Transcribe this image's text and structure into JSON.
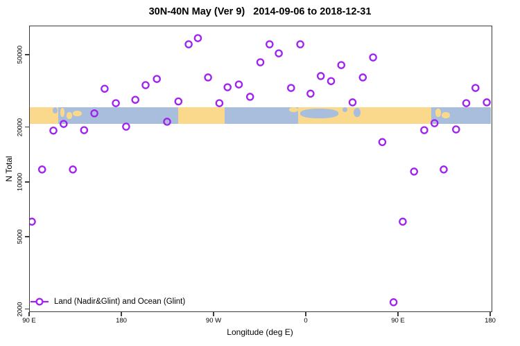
{
  "chart_data": {
    "type": "scatter",
    "title": "30N-40N May (Ver 9)   2014-09-06 to 2018-12-31",
    "xlabel": "Longitude (deg E)",
    "ylabel": "N Total",
    "x_axis": {
      "range_deg_east": [
        90,
        540
      ],
      "ticks": [
        {
          "lon": 90,
          "label": "90 E"
        },
        {
          "lon": 180,
          "label": "180"
        },
        {
          "lon": 270,
          "label": "90 W"
        },
        {
          "lon": 360,
          "label": "0"
        },
        {
          "lon": 450,
          "label": "90 E"
        },
        {
          "lon": 540,
          "label": "180"
        }
      ]
    },
    "y_axis": {
      "scale": "log10",
      "range": [
        1925,
        72200
      ],
      "ticks": [
        {
          "v": 2000,
          "label": "2000"
        },
        {
          "v": 5000,
          "label": "5000"
        },
        {
          "v": 10000,
          "label": "10000"
        },
        {
          "v": 20000,
          "label": "20000"
        },
        {
          "v": 50000,
          "label": "50000"
        }
      ]
    },
    "legend": {
      "label": "Land (Nadir&Glint) and Ocean (Glint)",
      "marker": "open-circle-on-line"
    },
    "series": [
      {
        "name": "Land (Nadir&Glint) and Ocean (Glint)",
        "color": "#A020F0",
        "marker": "open-circle",
        "points_lon_n": [
          [
            92,
            6100
          ],
          [
            102,
            11800
          ],
          [
            113,
            19300
          ],
          [
            123,
            21000
          ],
          [
            132,
            11800
          ],
          [
            143,
            19400
          ],
          [
            153,
            24000
          ],
          [
            163,
            32800
          ],
          [
            174,
            27300
          ],
          [
            184,
            20300
          ],
          [
            193,
            28500
          ],
          [
            203,
            34300
          ],
          [
            214,
            37100
          ],
          [
            224,
            21600
          ],
          [
            235,
            27900
          ],
          [
            245,
            57500
          ],
          [
            254,
            62200
          ],
          [
            264,
            37800
          ],
          [
            275,
            27300
          ],
          [
            283,
            33400
          ],
          [
            294,
            34600
          ],
          [
            305,
            29600
          ],
          [
            315,
            45800
          ],
          [
            324,
            57500
          ],
          [
            333,
            51300
          ],
          [
            345,
            33100
          ],
          [
            354,
            57500
          ],
          [
            364,
            30800
          ],
          [
            374,
            38500
          ],
          [
            384,
            36100
          ],
          [
            394,
            44200
          ],
          [
            405,
            27600
          ],
          [
            415,
            37800
          ],
          [
            425,
            48700
          ],
          [
            434,
            16700
          ],
          [
            445,
            2200
          ],
          [
            454,
            6100
          ],
          [
            465,
            11500
          ],
          [
            475,
            19400
          ],
          [
            485,
            21200
          ],
          [
            494,
            11800
          ],
          [
            506,
            19600
          ],
          [
            516,
            27300
          ],
          [
            525,
            33100
          ],
          [
            536,
            27600
          ]
        ]
      }
    ],
    "map_band": {
      "n_range": [
        21000,
        26000
      ],
      "land_color": "#FAD98C",
      "ocean_color": "#A8BEDC",
      "segments": [
        {
          "surface": "land",
          "from": 90,
          "to": 118
        },
        {
          "surface": "ocean",
          "from": 118,
          "to": 235
        },
        {
          "surface": "land",
          "from": 235,
          "to": 280
        },
        {
          "surface": "ocean",
          "from": 280,
          "to": 352
        },
        {
          "surface": "land",
          "from": 352,
          "to": 482
        },
        {
          "surface": "ocean",
          "from": 482,
          "to": 540
        }
      ],
      "details": [
        {
          "surface": "ocean",
          "from": 112,
          "to": 117,
          "top": 0.0,
          "h": 0.4
        },
        {
          "surface": "land",
          "from": 120,
          "to": 124,
          "top": 0.05,
          "h": 0.55
        },
        {
          "surface": "land",
          "from": 126,
          "to": 131,
          "top": 0.3,
          "h": 0.4
        },
        {
          "surface": "land",
          "from": 132,
          "to": 141,
          "top": 0.2,
          "h": 0.35
        },
        {
          "surface": "land",
          "from": 343,
          "to": 352,
          "top": 0.0,
          "h": 0.3
        },
        {
          "surface": "ocean",
          "from": 354,
          "to": 391,
          "top": 0.1,
          "h": 0.55
        },
        {
          "surface": "ocean",
          "from": 395,
          "to": 400,
          "top": 0.0,
          "h": 0.3
        },
        {
          "surface": "ocean",
          "from": 406,
          "to": 413,
          "top": 0.05,
          "h": 0.55
        },
        {
          "surface": "land",
          "from": 486,
          "to": 491,
          "top": 0.1,
          "h": 0.5
        },
        {
          "surface": "land",
          "from": 492,
          "to": 500,
          "top": 0.28,
          "h": 0.37
        }
      ]
    }
  },
  "colors": {
    "marker": "#A020F0",
    "land": "#FAD98C",
    "ocean": "#A8BEDC",
    "axis": "#3c3c3c"
  }
}
